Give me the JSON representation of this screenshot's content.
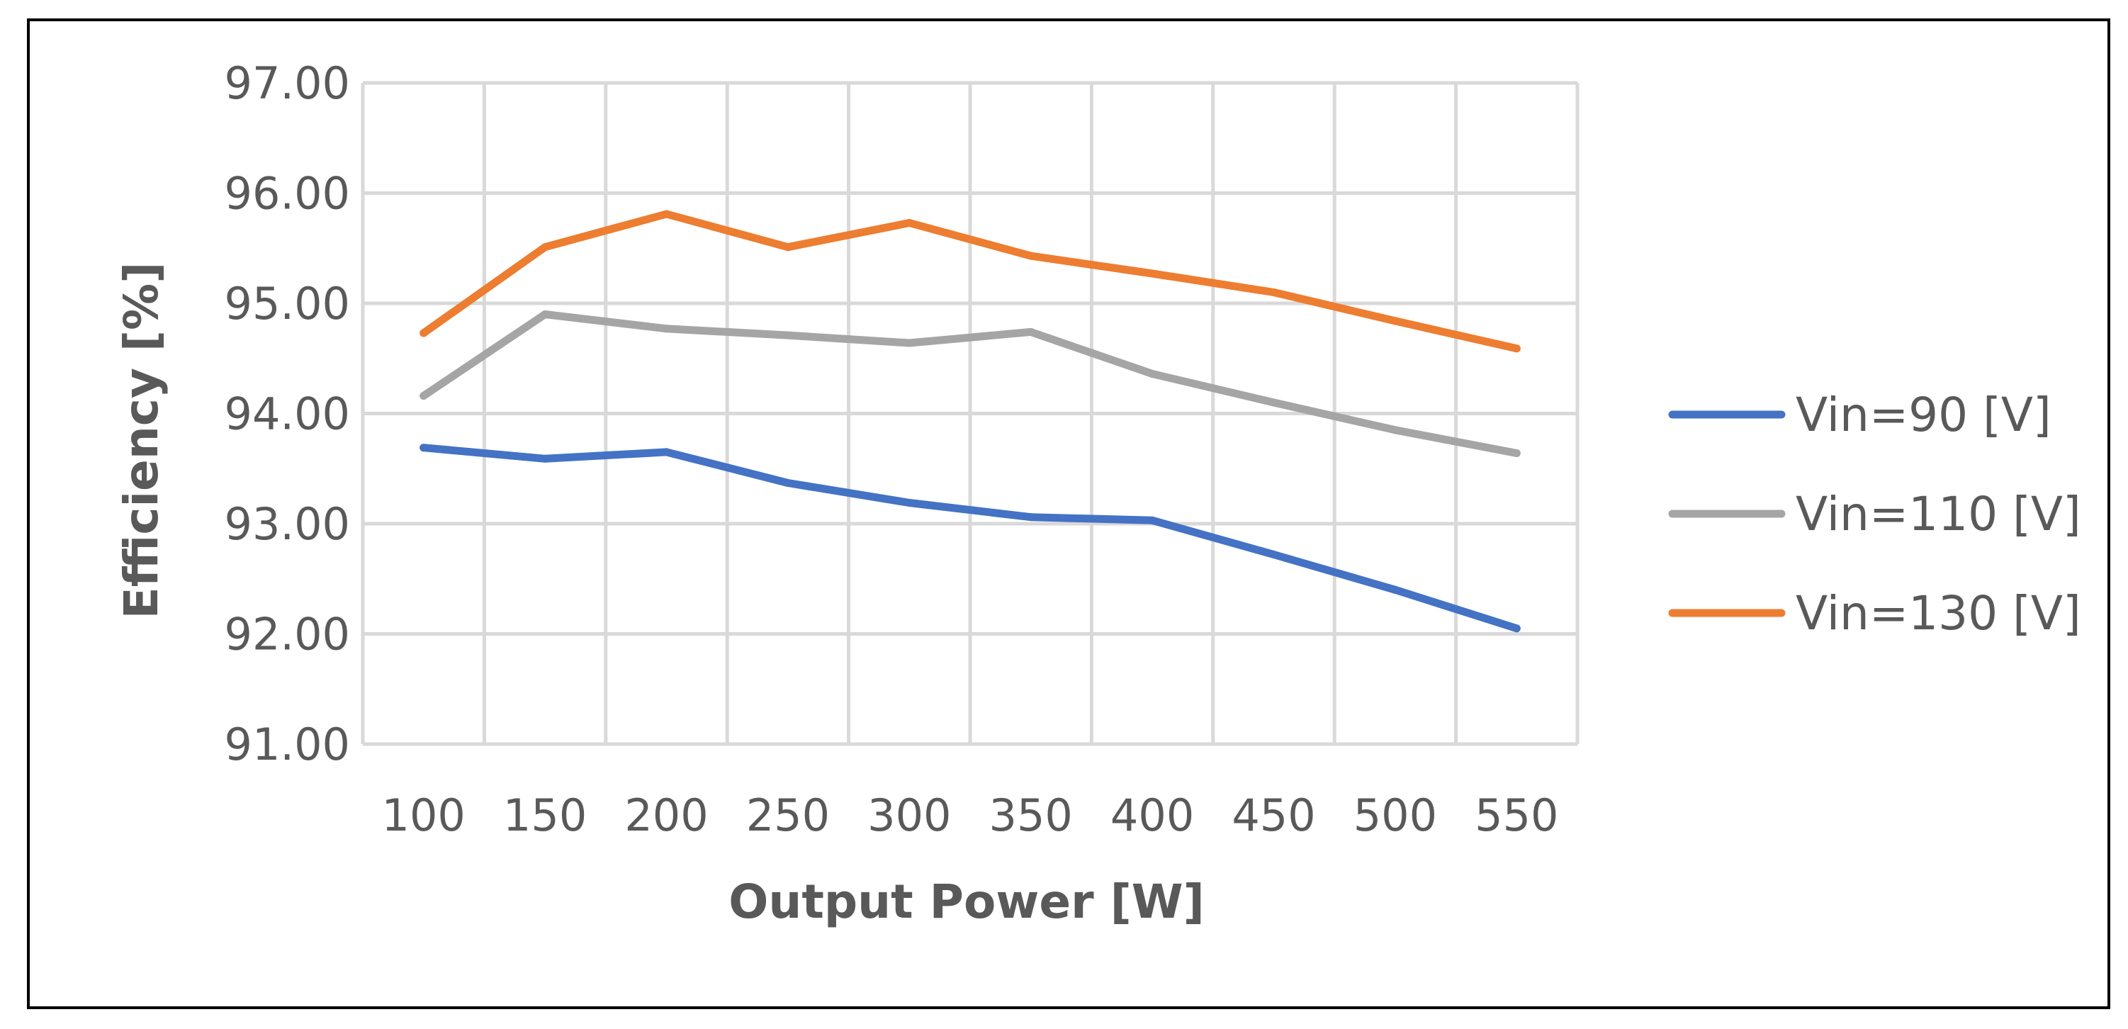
{
  "chart_data": {
    "type": "line",
    "title": "",
    "xlabel": "Output Power [W]",
    "ylabel": "Efficiency [%]",
    "x": [
      100,
      150,
      200,
      250,
      300,
      350,
      400,
      450,
      500,
      550
    ],
    "x_tick_labels": [
      "100",
      "150",
      "200",
      "250",
      "300",
      "350",
      "400",
      "450",
      "500",
      "550"
    ],
    "ylim": [
      91,
      97
    ],
    "y_ticks": [
      91,
      92,
      93,
      94,
      95,
      96,
      97
    ],
    "y_tick_labels": [
      "91.00",
      "92.00",
      "93.00",
      "94.00",
      "95.00",
      "96.00",
      "97.00"
    ],
    "grid": true,
    "legend_position": "right",
    "series": [
      {
        "name": "Vin=90 [V]",
        "color": "#4472C4",
        "values": [
          93.69,
          93.59,
          93.65,
          93.37,
          93.19,
          93.06,
          93.03,
          92.72,
          92.4,
          92.05
        ]
      },
      {
        "name": "Vin=110 [V]",
        "color": "#A5A5A5",
        "values": [
          94.16,
          94.9,
          94.77,
          94.71,
          94.64,
          94.74,
          94.36,
          94.1,
          93.85,
          93.64
        ]
      },
      {
        "name": "Vin=130 [V]",
        "color": "#ED7D31",
        "values": [
          94.73,
          95.51,
          95.81,
          95.51,
          95.73,
          95.43,
          95.27,
          95.1,
          94.84,
          94.59
        ]
      }
    ]
  }
}
